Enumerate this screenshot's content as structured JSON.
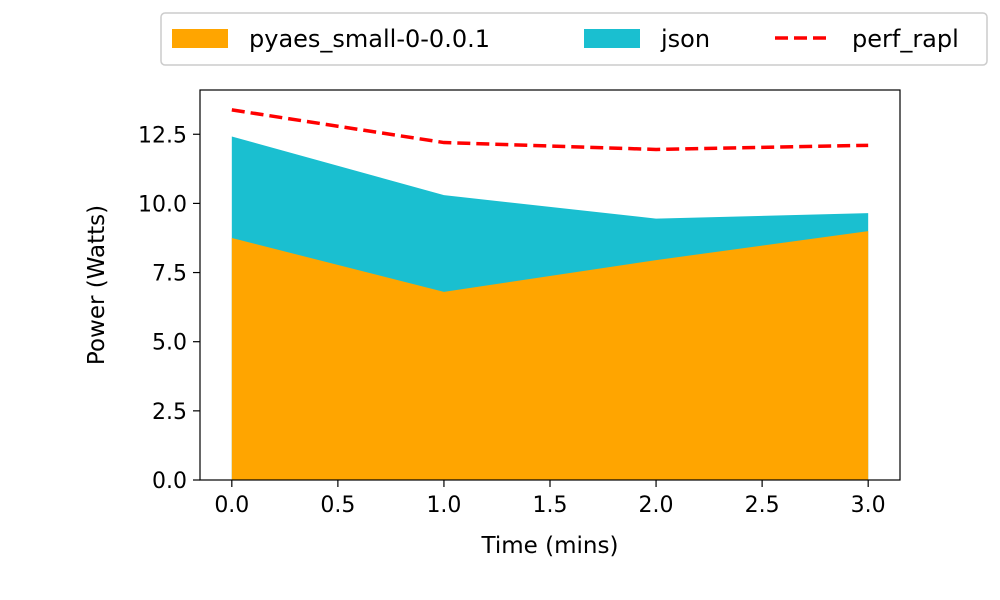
{
  "chart_data": {
    "type": "area",
    "title": "",
    "xlabel": "Time (mins)",
    "ylabel": "Power (Watts)",
    "x": [
      0,
      1,
      2,
      3
    ],
    "xlim": [
      -0.15,
      3.15
    ],
    "ylim": [
      0,
      14.1
    ],
    "xticks": [
      0.0,
      0.5,
      1.0,
      1.5,
      2.0,
      2.5,
      3.0
    ],
    "xtick_labels": [
      "0.0",
      "0.5",
      "1.0",
      "1.5",
      "2.0",
      "2.5",
      "3.0"
    ],
    "yticks": [
      0.0,
      2.5,
      5.0,
      7.5,
      10.0,
      12.5
    ],
    "ytick_labels": [
      "0.0",
      "2.5",
      "5.0",
      "7.5",
      "10.0",
      "12.5"
    ],
    "grid": false,
    "legend_position": "top (outside, above plot)",
    "series": [
      {
        "name": "pyaes_small-0-0.0.1",
        "kind": "area",
        "color": "#FFA500",
        "values": [
          8.75,
          6.8,
          7.95,
          9.0
        ]
      },
      {
        "name": "json",
        "kind": "area",
        "color": "#1ABFD0",
        "values": [
          12.42,
          10.3,
          9.45,
          9.65
        ]
      },
      {
        "name": "perf_rapl",
        "kind": "line",
        "style": "dashed",
        "color": "#FF0000",
        "values": [
          13.38,
          12.2,
          11.95,
          12.1
        ]
      }
    ]
  }
}
